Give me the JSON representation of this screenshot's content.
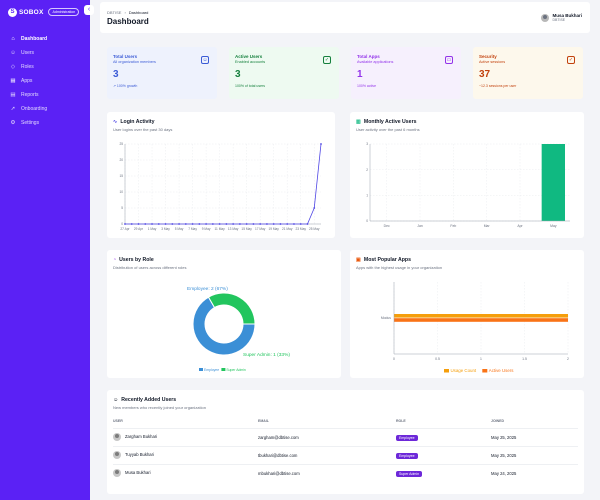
{
  "brand": {
    "name": "SOBOX",
    "logo": "S",
    "badge": "Administration"
  },
  "sidebar": {
    "items": [
      {
        "label": "Dashboard",
        "icon": "home-icon",
        "glyph": "⌂",
        "active": true
      },
      {
        "label": "Users",
        "icon": "users-icon",
        "glyph": "☺",
        "active": false
      },
      {
        "label": "Roles",
        "icon": "shield-icon",
        "glyph": "◇",
        "active": false
      },
      {
        "label": "Apps",
        "icon": "grid-icon",
        "glyph": "▦",
        "active": false
      },
      {
        "label": "Reports",
        "icon": "chart-icon",
        "glyph": "▤",
        "active": false
      },
      {
        "label": "Onboarding",
        "icon": "onboarding-icon",
        "glyph": "➚",
        "active": false
      },
      {
        "label": "Settings",
        "icon": "gear-icon",
        "glyph": "⚙",
        "active": false
      }
    ]
  },
  "header": {
    "breadcrumb": [
      "DBTISE",
      "Dashboard"
    ],
    "title": "Dashboard",
    "user": {
      "name": "Musa Bukhari",
      "org": "DBTISE"
    }
  },
  "stats": [
    {
      "title": "Total Users",
      "subtitle": "All organization members",
      "value": "3",
      "footer": "↗ 100% growth",
      "bg": "#eef2fd",
      "accent": "#3b5bd6",
      "icon": "users-icon",
      "glyph": "☺"
    },
    {
      "title": "Active Users",
      "subtitle": "Enabled accounts",
      "value": "3",
      "footer": "100% of total users",
      "bg": "#eefaf1",
      "accent": "#15803d",
      "icon": "user-check-icon",
      "glyph": "✓"
    },
    {
      "title": "Total Apps",
      "subtitle": "Available applications",
      "value": "1",
      "footer": "100% active",
      "bg": "#f6f0fd",
      "accent": "#9333ea",
      "icon": "app-window-icon",
      "glyph": "▭"
    },
    {
      "title": "Security",
      "subtitle": "Active sessions",
      "value": "37",
      "footer": "~12.3 sessions per user",
      "bg": "#fdf8ec",
      "accent": "#c2410c",
      "icon": "shield-check-icon",
      "glyph": "✓"
    }
  ],
  "login_chart": {
    "title": "Login Activity",
    "subtitle": "User logins over the past 30 days"
  },
  "mau_chart": {
    "title": "Monthly Active Users",
    "subtitle": "User activity over the past 6 months"
  },
  "role_chart": {
    "title": "Users by Role",
    "subtitle": "Distribution of users across different roles"
  },
  "apps_chart": {
    "title": "Most Popular Apps",
    "subtitle": "Apps with the highest usage in your organization"
  },
  "recent_users": {
    "title": "Recently Added Users",
    "subtitle": "New members who recently joined your organization",
    "columns": [
      "USER",
      "EMAIL",
      "ROLE",
      "JOINED"
    ],
    "rows": [
      {
        "name": "Zargham Bukhari",
        "email": "zargham@dbtise.com",
        "role": "Employee",
        "joined": "May 25, 2025"
      },
      {
        "name": "Tuyyab Bukhari",
        "email": "tbukhari@dbtise.com",
        "role": "Employee",
        "joined": "May 25, 2025"
      },
      {
        "name": "Musa Bukhari",
        "email": "mbukhari@dbtise.com",
        "role": "Super Admin",
        "joined": "May 24, 2025"
      }
    ]
  },
  "chart_data": [
    {
      "type": "line",
      "title": "Login Activity",
      "x": [
        "27 Apr",
        "28 Apr",
        "29 Apr",
        "30 Apr",
        "1 May",
        "2 May",
        "3 May",
        "4 May",
        "5 May",
        "6 May",
        "7 May",
        "8 May",
        "9 May",
        "10 May",
        "11 May",
        "12 May",
        "13 May",
        "14 May",
        "15 May",
        "16 May",
        "17 May",
        "18 May",
        "19 May",
        "20 May",
        "21 May",
        "22 May",
        "23 May",
        "24 May",
        "25 May",
        "26 May"
      ],
      "x_tick_labels": [
        "27 Apr",
        "29 Apr",
        "1 May",
        "3 May",
        "5 May",
        "7 May",
        "9 May",
        "11 May",
        "13 May",
        "15 May",
        "17 May",
        "19 May",
        "21 May",
        "23 May",
        "25 May"
      ],
      "values": [
        0,
        0,
        0,
        0,
        0,
        0,
        0,
        0,
        0,
        0,
        0,
        0,
        0,
        0,
        0,
        0,
        0,
        0,
        0,
        0,
        0,
        0,
        0,
        0,
        0,
        0,
        0,
        0,
        5,
        25
      ],
      "ylim": [
        0,
        25
      ],
      "y_ticks": [
        0,
        5,
        10,
        15,
        20,
        25
      ],
      "grid": true,
      "color": "#4f46e5"
    },
    {
      "type": "bar",
      "title": "Monthly Active Users",
      "categories": [
        "Dec",
        "Jan",
        "Feb",
        "Mar",
        "Apr",
        "May"
      ],
      "values": [
        0,
        0,
        0,
        0,
        0,
        3
      ],
      "ylim": [
        0,
        3
      ],
      "y_ticks": [
        0,
        1,
        2,
        3
      ],
      "grid": true,
      "color": "#10b981"
    },
    {
      "type": "pie",
      "title": "Users by Role",
      "donut": true,
      "series": [
        {
          "name": "Employee",
          "value": 2,
          "label": "Employee: 2 (67%)",
          "color": "#3b8fd6"
        },
        {
          "name": "Super Admin",
          "value": 1,
          "label": "Super Admin: 1 (33%)",
          "color": "#22c55e"
        }
      ],
      "legend": "bottom"
    },
    {
      "type": "bar",
      "orientation": "horizontal",
      "title": "Most Popular Apps",
      "categories": [
        "Modus"
      ],
      "series": [
        {
          "name": "Usage Count",
          "values": [
            2
          ],
          "color": "#f59e0b"
        },
        {
          "name": "Active Users",
          "values": [
            2
          ],
          "color": "#f97316"
        }
      ],
      "xlim": [
        0,
        2
      ],
      "x_ticks": [
        "0",
        "0.5",
        "1",
        "1.5",
        "2"
      ],
      "grid": true,
      "legend": "bottom"
    }
  ]
}
